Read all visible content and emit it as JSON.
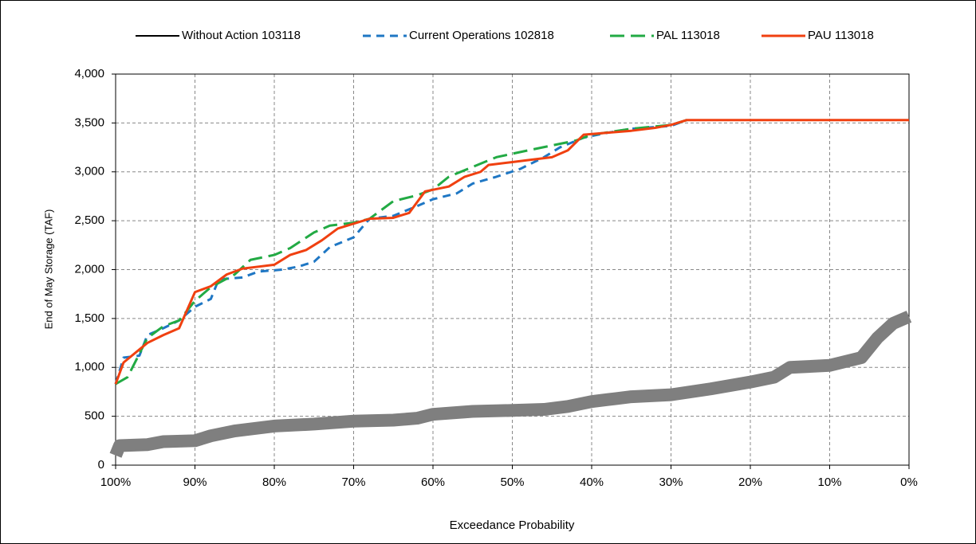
{
  "chart_data": {
    "type": "line",
    "xlabel": "Exceedance Probability",
    "ylabel": "End of  May Storage (TAF)",
    "xlim": [
      100,
      0
    ],
    "ylim": [
      0,
      4000
    ],
    "xticks": [
      {
        "value": 100,
        "label": "100%"
      },
      {
        "value": 90,
        "label": "90%"
      },
      {
        "value": 80,
        "label": "80%"
      },
      {
        "value": 70,
        "label": "70%"
      },
      {
        "value": 60,
        "label": "60%"
      },
      {
        "value": 50,
        "label": "50%"
      },
      {
        "value": 40,
        "label": "40%"
      },
      {
        "value": 30,
        "label": "30%"
      },
      {
        "value": 20,
        "label": "20%"
      },
      {
        "value": 10,
        "label": "10%"
      },
      {
        "value": 0,
        "label": "0%"
      }
    ],
    "yticks": [
      0,
      500,
      {
        "value": 1000,
        "label": "1,000"
      },
      {
        "value": 1500,
        "label": "1,500"
      },
      {
        "value": 2000,
        "label": "2,000"
      },
      {
        "value": 2500,
        "label": "2,500"
      },
      {
        "value": 3000,
        "label": "3,000"
      },
      {
        "value": 3500,
        "label": "3,500"
      },
      {
        "value": 4000,
        "label": "4,000"
      }
    ],
    "grid": true,
    "legend": "top",
    "series": [
      {
        "name": "Without Action 103118",
        "color": "#7f7f7f",
        "dash": "solid",
        "x": [
          100,
          99.5,
          96,
          94,
          90,
          88,
          85,
          80,
          75,
          70,
          65,
          62,
          60,
          55,
          50,
          46,
          43,
          40,
          37,
          35,
          30,
          25,
          20,
          17,
          15,
          10,
          6,
          4,
          2,
          0
        ],
        "values": [
          100,
          200,
          210,
          240,
          250,
          300,
          350,
          400,
          420,
          450,
          460,
          480,
          520,
          550,
          560,
          570,
          600,
          650,
          680,
          700,
          720,
          780,
          850,
          900,
          1000,
          1020,
          1100,
          1300,
          1450,
          1520
        ]
      },
      {
        "name": "Current Operations 102818",
        "color": "#1f77c4",
        "dash": "dashed",
        "x": [
          100,
          99,
          97,
          96,
          94,
          92,
          90,
          88,
          87,
          84,
          82,
          79,
          77,
          75,
          73,
          70,
          68,
          65,
          62,
          60,
          57,
          55,
          52,
          49,
          46,
          44,
          41,
          38,
          35,
          30,
          28
        ],
        "values": [
          830,
          1100,
          1120,
          1330,
          1400,
          1480,
          1620,
          1700,
          1900,
          1920,
          1980,
          2000,
          2030,
          2080,
          2230,
          2330,
          2520,
          2550,
          2650,
          2720,
          2780,
          2880,
          2950,
          3030,
          3150,
          3250,
          3350,
          3400,
          3440,
          3470,
          3530
        ]
      },
      {
        "name": "PAL 113018",
        "color": "#22aa44",
        "dash": "longdash",
        "x": [
          100,
          98.5,
          96,
          94,
          92,
          90,
          88,
          85,
          83,
          80,
          78,
          75,
          73,
          70,
          68,
          65,
          62,
          60,
          58,
          55,
          52,
          48,
          45,
          42,
          40,
          35,
          30,
          28
        ],
        "values": [
          830,
          900,
          1300,
          1420,
          1480,
          1680,
          1820,
          1950,
          2100,
          2150,
          2220,
          2380,
          2450,
          2480,
          2520,
          2700,
          2760,
          2820,
          2950,
          3050,
          3150,
          3220,
          3270,
          3320,
          3380,
          3440,
          3480,
          3530
        ]
      },
      {
        "name": "PAU 113018",
        "color": "#f04010",
        "dash": "solid",
        "x": [
          100,
          99,
          96,
          94,
          92,
          90,
          88,
          86,
          84,
          82,
          80,
          78,
          76,
          74,
          72,
          70,
          68,
          65,
          63,
          61,
          58,
          56,
          54,
          53,
          50,
          48,
          45,
          43,
          41,
          38,
          35,
          32,
          30,
          28,
          0
        ],
        "values": [
          830,
          1050,
          1250,
          1330,
          1400,
          1770,
          1830,
          1950,
          2010,
          2030,
          2050,
          2150,
          2200,
          2300,
          2420,
          2470,
          2520,
          2530,
          2580,
          2800,
          2850,
          2950,
          3000,
          3070,
          3100,
          3120,
          3150,
          3220,
          3380,
          3400,
          3420,
          3450,
          3480,
          3530,
          3530
        ]
      }
    ]
  }
}
